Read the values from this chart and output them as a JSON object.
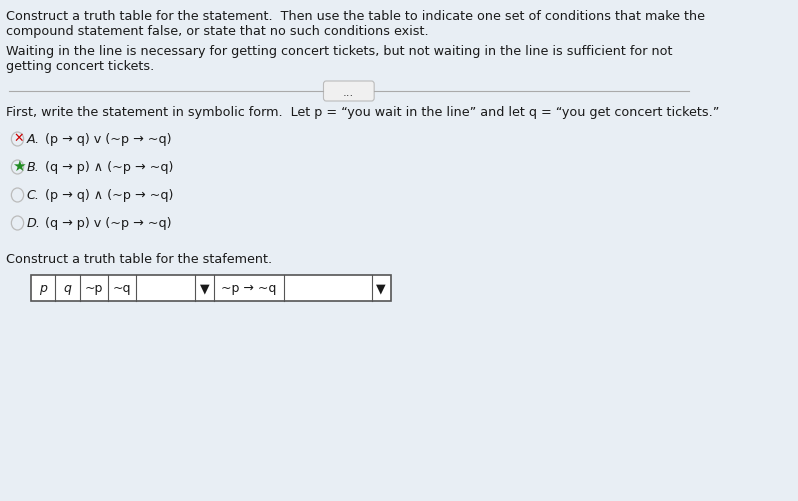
{
  "bg_top": "#c8d8e8",
  "bg_main": "#e8eef4",
  "text_color": "#1a1a1a",
  "title_line1": "Construct a truth table for the statement.  Then use the table to indicate one set of conditions that make the",
  "title_line2": "compound statement false, or state that no such conditions exist.",
  "problem_line1": "Waiting in the line is necessary for getting concert tickets, but not waiting in the line is sufficient for not",
  "problem_line2": "getting concert tickets.",
  "divider_dots": "...",
  "symbolic_intro": "First, write the statement in symbolic form.  Let p = “you wait in the line” and let q = “you get concert tickets.”",
  "options": [
    {
      "label": "A.",
      "text": "(p → q) v (~p → ~q)",
      "marker": "X",
      "marker_color": "#cc0000",
      "selected": false
    },
    {
      "label": "B.",
      "text": "(q → p) ∧ (~p → ~q)",
      "marker": "star",
      "marker_color": "#228B22",
      "selected": true
    },
    {
      "label": "C.",
      "text": "(p → q) ∧ (~p → ~q)",
      "marker": "circle",
      "marker_color": "#888888",
      "selected": false
    },
    {
      "label": "D.",
      "text": "(q → p) v (~p → ~q)",
      "marker": "circle",
      "marker_color": "#888888",
      "selected": false
    }
  ],
  "truth_table_label": "Construct a truth table for the stafement.",
  "table_border_color": "#555555",
  "ellipsis_box_color": "#f0f0f0",
  "divider_color": "#aaaaaa"
}
